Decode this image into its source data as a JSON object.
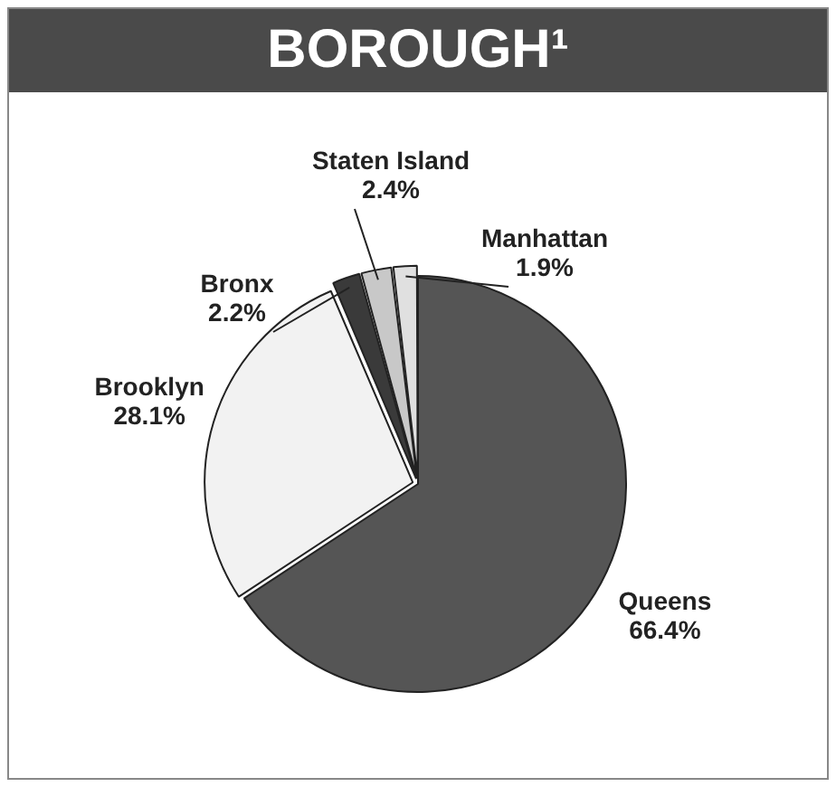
{
  "chart_data": {
    "type": "pie",
    "title": "BOROUGH¹",
    "categories": [
      "Queens",
      "Brooklyn",
      "Bronx",
      "Staten Island",
      "Manhattan"
    ],
    "values": [
      66.4,
      28.1,
      2.2,
      2.4,
      1.9
    ],
    "colors": [
      "#555555",
      "#f2f2f2",
      "#3a3a3a",
      "#c8c8c8",
      "#e0e0e0"
    ],
    "value_labels": [
      "66.4%",
      "28.1%",
      "2.2%",
      "2.4%",
      "1.9%"
    ],
    "legend": false
  }
}
